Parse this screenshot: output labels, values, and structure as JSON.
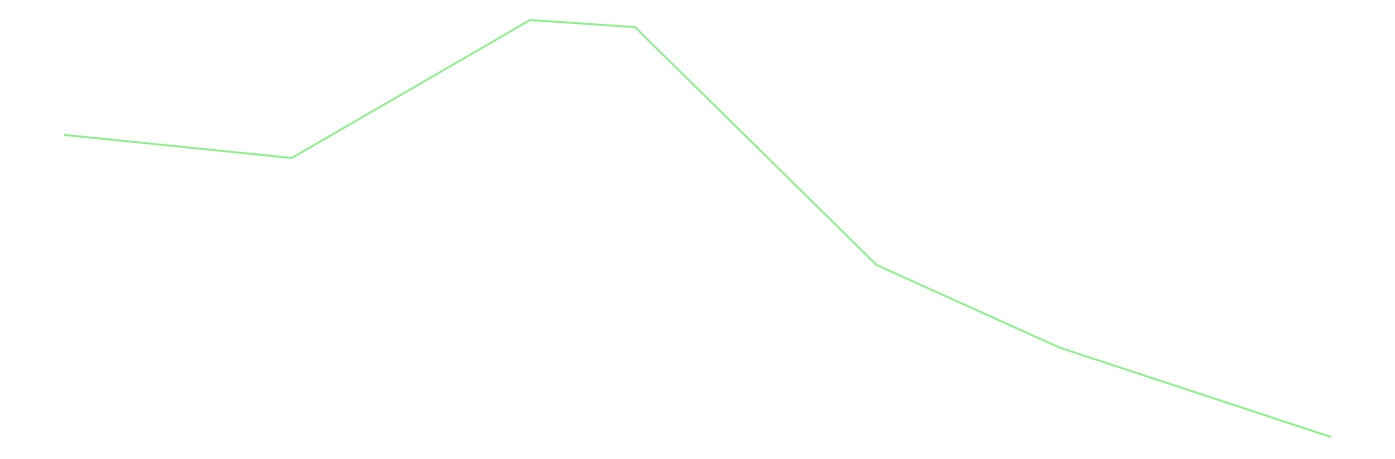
{
  "chart_data": {
    "type": "line",
    "title": "",
    "xlabel": "",
    "ylabel": "",
    "grid": false,
    "legend": "none",
    "x": [
      0,
      1,
      2,
      3,
      4,
      5,
      6
    ],
    "x_positions": [
      0,
      2.17,
      4.44,
      5.44,
      7.74,
      9.48,
      12.07
    ],
    "series": [
      {
        "color": "#90ee90",
        "values": [
          74.1,
          68.9,
          100,
          98.4,
          44.8,
          26.2,
          6.0
        ]
      }
    ],
    "xlim": [
      0,
      12.07
    ],
    "ylim": [
      6.0,
      100
    ]
  }
}
